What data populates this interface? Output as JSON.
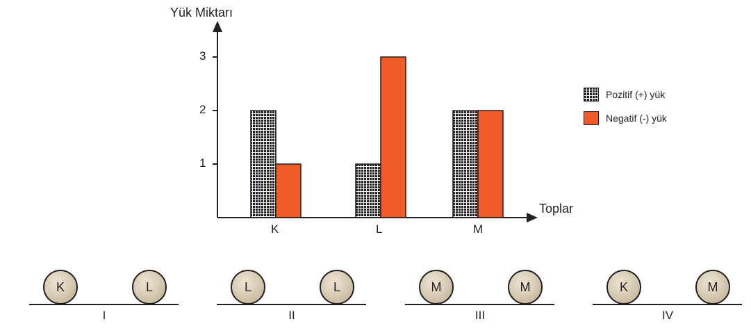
{
  "chart_data": {
    "type": "bar",
    "ylabel": "Yük Miktarı",
    "xlabel": "Toplar",
    "categories": [
      "K",
      "L",
      "M"
    ],
    "yticks": [
      1,
      2,
      3
    ],
    "ylim": [
      0,
      3.5
    ],
    "series": [
      {
        "name": "Pozitif (+) yük",
        "values": [
          2,
          1,
          2
        ],
        "pattern": "grid"
      },
      {
        "name": "Negatif (-) yük",
        "values": [
          1,
          3,
          2
        ],
        "color": "#f15a29"
      }
    ],
    "legend_position": "right"
  },
  "arrangements": [
    {
      "label": "I",
      "left_ball": "K",
      "right_ball": "L"
    },
    {
      "label": "II",
      "left_ball": "L",
      "right_ball": "L"
    },
    {
      "label": "III",
      "left_ball": "M",
      "right_ball": "M"
    },
    {
      "label": "IV",
      "left_ball": "K",
      "right_ball": "M"
    }
  ]
}
